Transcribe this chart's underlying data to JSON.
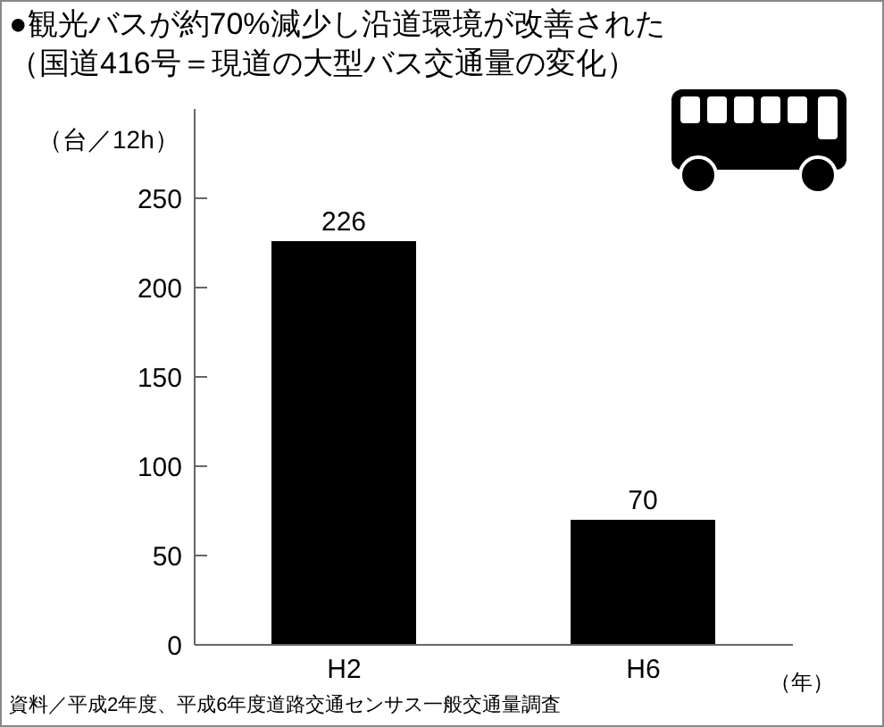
{
  "chart_data": {
    "type": "bar",
    "title": "●観光バスが約70%減少し沿道環境が改善された",
    "subtitle": "（国道416号＝現道の大型バス交通量の変化）",
    "ylabel": "（台／12h）",
    "xlabel": "（年）",
    "annotations": [
      "資料／平成2年度、平成6年度道路交通センサス一般交通量調査"
    ],
    "categories": [
      "H2",
      "H6"
    ],
    "values": [
      226,
      70
    ],
    "color": "#000000",
    "ylim": [
      0,
      300
    ],
    "yticks": [
      0,
      50,
      100,
      150,
      200,
      250
    ],
    "data_labels": true
  }
}
